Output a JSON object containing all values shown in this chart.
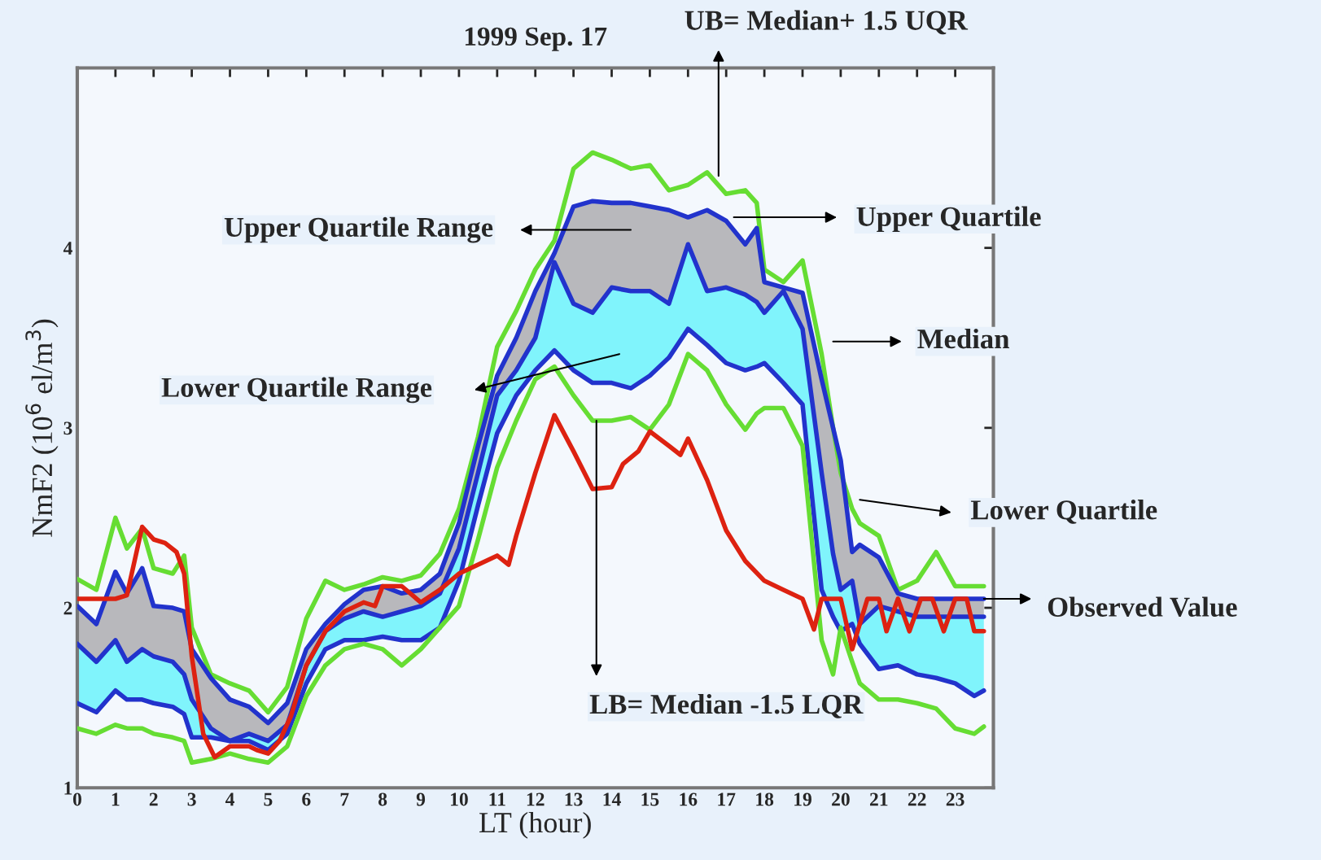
{
  "chart_data": {
    "type": "line",
    "title": "1999 Sep. 17",
    "xlabel": "LT (hour)",
    "ylabel": "NmF2 (10$^{6}$ el/m$^{3}$)",
    "x": [
      0,
      0.5,
      1,
      1.3,
      1.7,
      2,
      2.5,
      2.8,
      3,
      3.5,
      4,
      4.5,
      5,
      5.5,
      6,
      6.5,
      7,
      7.5,
      8,
      8.5,
      9,
      9.5,
      10,
      10.5,
      11,
      11.5,
      12,
      12.5,
      13,
      13.5,
      14,
      14.5,
      15,
      15.5,
      16,
      16.5,
      17,
      17.5,
      17.8,
      18,
      18.5,
      19,
      19.5,
      19.8,
      20,
      20.3,
      20.5,
      21,
      21.5,
      22,
      22.5,
      23,
      23.5,
      23.75
    ],
    "xlim": [
      0,
      24
    ],
    "xticks": [
      0,
      1,
      2,
      3,
      4,
      5,
      6,
      7,
      8,
      9,
      10,
      11,
      12,
      13,
      14,
      15,
      16,
      17,
      18,
      19,
      20,
      21,
      22,
      23
    ],
    "ylim": [
      1,
      5
    ],
    "yticks": [
      1,
      2,
      3,
      4,
      {
        "value": 5,
        "label": null
      }
    ],
    "grid": false,
    "legend": false,
    "marker": "none",
    "line_style": "solid",
    "series": [
      {
        "color": "#66dd33",
        "values": [
          2.16,
          2.1,
          2.5,
          2.33,
          2.44,
          2.22,
          2.19,
          2.29,
          1.89,
          1.63,
          1.58,
          1.54,
          1.42,
          1.56,
          1.94,
          2.15,
          2.1,
          2.13,
          2.17,
          2.15,
          2.18,
          2.3,
          2.55,
          2.95,
          3.45,
          3.65,
          3.88,
          4.04,
          4.44,
          4.53,
          4.49,
          4.44,
          4.46,
          4.32,
          4.35,
          4.42,
          4.3,
          4.32,
          4.25,
          3.88,
          3.81,
          3.93,
          3.41,
          3.0,
          2.75,
          2.55,
          2.47,
          2.4,
          2.1,
          2.15,
          2.31,
          2.12,
          2.12,
          2.12
        ]
      },
      {
        "color": "#2233cc",
        "values": [
          2.01,
          1.91,
          2.2,
          2.08,
          2.22,
          2.01,
          2.0,
          1.98,
          1.77,
          1.61,
          1.49,
          1.45,
          1.36,
          1.47,
          1.77,
          1.91,
          2.02,
          2.1,
          2.12,
          2.08,
          2.1,
          2.19,
          2.47,
          2.9,
          3.29,
          3.5,
          3.76,
          3.97,
          4.23,
          4.26,
          4.25,
          4.25,
          4.23,
          4.21,
          4.17,
          4.21,
          4.15,
          4.02,
          4.11,
          3.81,
          3.78,
          3.75,
          3.27,
          3.0,
          2.82,
          2.31,
          2.35,
          2.28,
          2.08,
          2.05,
          2.05,
          2.05,
          2.05,
          2.05
        ],
        "upper": [
          2.01,
          1.91,
          2.2,
          2.08,
          2.22,
          2.01,
          2.0,
          1.98,
          1.77,
          1.61,
          1.49,
          1.45,
          1.36,
          1.47,
          1.77,
          1.91,
          2.02,
          2.1,
          2.12,
          2.08,
          2.1,
          2.19,
          2.47,
          2.9,
          3.29,
          3.5,
          3.76,
          3.97,
          4.23,
          4.26,
          4.25,
          4.25,
          4.23,
          4.21,
          4.17,
          4.21,
          4.15,
          4.02,
          4.11,
          3.81,
          3.78,
          3.75,
          3.27,
          3.0,
          2.82,
          2.31,
          2.35,
          2.28,
          2.08,
          2.05,
          2.05,
          2.05,
          2.05,
          2.05
        ],
        "lower": [
          1.8,
          1.7,
          1.82,
          1.7,
          1.77,
          1.73,
          1.7,
          1.63,
          1.49,
          1.33,
          1.26,
          1.3,
          1.26,
          1.35,
          1.68,
          1.87,
          1.94,
          1.98,
          1.95,
          1.98,
          2.01,
          2.08,
          2.33,
          2.75,
          3.18,
          3.32,
          3.5,
          3.92,
          3.69,
          3.64,
          3.78,
          3.76,
          3.76,
          3.69,
          4.02,
          3.76,
          3.78,
          3.74,
          3.7,
          3.64,
          3.76,
          3.55,
          2.75,
          2.3,
          2.1,
          2.15,
          1.91,
          2.01,
          1.98,
          1.95,
          1.95,
          1.95,
          1.95,
          1.95
        ]
      },
      {
        "color": "#2233cc",
        "values": [
          1.8,
          1.7,
          1.82,
          1.7,
          1.77,
          1.73,
          1.7,
          1.63,
          1.49,
          1.33,
          1.26,
          1.3,
          1.26,
          1.35,
          1.68,
          1.87,
          1.94,
          1.98,
          1.95,
          1.98,
          2.01,
          2.08,
          2.33,
          2.75,
          3.18,
          3.32,
          3.5,
          3.92,
          3.69,
          3.64,
          3.78,
          3.76,
          3.76,
          3.69,
          4.02,
          3.76,
          3.78,
          3.74,
          3.7,
          3.64,
          3.76,
          3.55,
          2.75,
          2.3,
          2.1,
          2.15,
          1.91,
          2.01,
          1.98,
          1.95,
          1.95,
          1.95,
          1.95,
          1.95
        ],
        "upper": [
          1.8,
          1.7,
          1.82,
          1.7,
          1.77,
          1.73,
          1.7,
          1.63,
          1.49,
          1.33,
          1.26,
          1.3,
          1.26,
          1.35,
          1.68,
          1.87,
          1.94,
          1.98,
          1.95,
          1.98,
          2.01,
          2.08,
          2.33,
          2.75,
          3.18,
          3.32,
          3.5,
          3.92,
          3.69,
          3.64,
          3.78,
          3.76,
          3.76,
          3.69,
          4.02,
          3.76,
          3.78,
          3.74,
          3.7,
          3.64,
          3.76,
          3.55,
          2.75,
          2.3,
          2.1,
          2.15,
          1.91,
          2.01,
          1.98,
          1.95,
          1.95,
          1.95,
          1.95,
          1.95
        ],
        "lower": [
          1.47,
          1.42,
          1.54,
          1.49,
          1.49,
          1.47,
          1.45,
          1.41,
          1.28,
          1.28,
          1.26,
          1.26,
          1.21,
          1.3,
          1.58,
          1.77,
          1.82,
          1.82,
          1.84,
          1.82,
          1.82,
          1.89,
          2.15,
          2.57,
          2.97,
          3.18,
          3.32,
          3.43,
          3.32,
          3.25,
          3.25,
          3.22,
          3.29,
          3.39,
          3.55,
          3.46,
          3.36,
          3.32,
          3.34,
          3.36,
          3.25,
          3.13,
          2.1,
          1.95,
          1.87,
          1.91,
          1.8,
          1.66,
          1.68,
          1.63,
          1.61,
          1.58,
          1.51,
          1.54
        ]
      },
      {
        "color": "#2233cc",
        "values": [
          1.47,
          1.42,
          1.54,
          1.49,
          1.49,
          1.47,
          1.45,
          1.41,
          1.28,
          1.28,
          1.26,
          1.26,
          1.21,
          1.3,
          1.58,
          1.77,
          1.82,
          1.82,
          1.84,
          1.82,
          1.82,
          1.89,
          2.15,
          2.57,
          2.97,
          3.18,
          3.32,
          3.43,
          3.32,
          3.25,
          3.25,
          3.22,
          3.29,
          3.39,
          3.55,
          3.46,
          3.36,
          3.32,
          3.34,
          3.36,
          3.25,
          3.13,
          2.1,
          1.95,
          1.87,
          1.91,
          1.8,
          1.66,
          1.68,
          1.63,
          1.61,
          1.58,
          1.51,
          1.54
        ]
      },
      {
        "color": "#66dd33",
        "values": [
          1.33,
          1.3,
          1.35,
          1.33,
          1.33,
          1.3,
          1.28,
          1.26,
          1.14,
          1.16,
          1.19,
          1.16,
          1.14,
          1.23,
          1.51,
          1.68,
          1.77,
          1.8,
          1.77,
          1.68,
          1.77,
          1.89,
          2.01,
          2.38,
          2.78,
          3.04,
          3.27,
          3.34,
          3.18,
          3.04,
          3.04,
          3.06,
          2.99,
          3.13,
          3.41,
          3.32,
          3.13,
          2.99,
          3.08,
          3.11,
          3.11,
          2.9,
          1.82,
          1.63,
          1.89,
          1.7,
          1.58,
          1.49,
          1.49,
          1.47,
          1.44,
          1.33,
          1.3,
          1.34
        ]
      },
      {
        "color": "#dd2211",
        "x": [
          0,
          0.5,
          1,
          1.3,
          1.7,
          2,
          2.3,
          2.6,
          2.8,
          3,
          3.3,
          3.6,
          4,
          4.5,
          4.7,
          5,
          5.3,
          5.6,
          6,
          6.5,
          7,
          7.5,
          7.8,
          8,
          8.5,
          9,
          9.5,
          10,
          10.5,
          11,
          11.3,
          11.5,
          12,
          12.5,
          13,
          13.5,
          14,
          14.3,
          14.7,
          15,
          15.5,
          15.8,
          16,
          16.5,
          17,
          17.5,
          18,
          18.5,
          19,
          19.3,
          19.5,
          20,
          20.3,
          20.7,
          21,
          21.2,
          21.5,
          21.8,
          22.1,
          22.4,
          22.7,
          23,
          23.3,
          23.5,
          23.75
        ],
        "values": [
          2.05,
          2.05,
          2.05,
          2.07,
          2.45,
          2.38,
          2.36,
          2.31,
          2.19,
          1.73,
          1.3,
          1.17,
          1.23,
          1.23,
          1.21,
          1.19,
          1.26,
          1.4,
          1.68,
          1.87,
          1.98,
          2.03,
          2.01,
          2.12,
          2.12,
          2.03,
          2.1,
          2.19,
          2.24,
          2.29,
          2.24,
          2.4,
          2.75,
          3.07,
          2.87,
          2.66,
          2.67,
          2.8,
          2.87,
          2.98,
          2.9,
          2.85,
          2.94,
          2.71,
          2.43,
          2.26,
          2.15,
          2.1,
          2.05,
          1.88,
          2.05,
          2.05,
          1.77,
          2.05,
          2.05,
          1.87,
          2.05,
          1.87,
          2.05,
          2.05,
          1.87,
          2.05,
          2.05,
          1.87,
          1.87
        ]
      }
    ],
    "annotations": [
      {
        "text": "UB= Median+ 1.5 UQR",
        "x": 16.8,
        "y": 4.4
      },
      "Upper Quartile Range",
      "Upper Quartile",
      "Lower Quartile Range",
      "Median",
      {
        "text": "LB= Median -1.5 LQR",
        "x": 13.6,
        "y": 3.04
      },
      "Lower Quartile",
      {
        "text": "Observed Value",
        "x": 23.75,
        "y": 2.05
      }
    ]
  }
}
